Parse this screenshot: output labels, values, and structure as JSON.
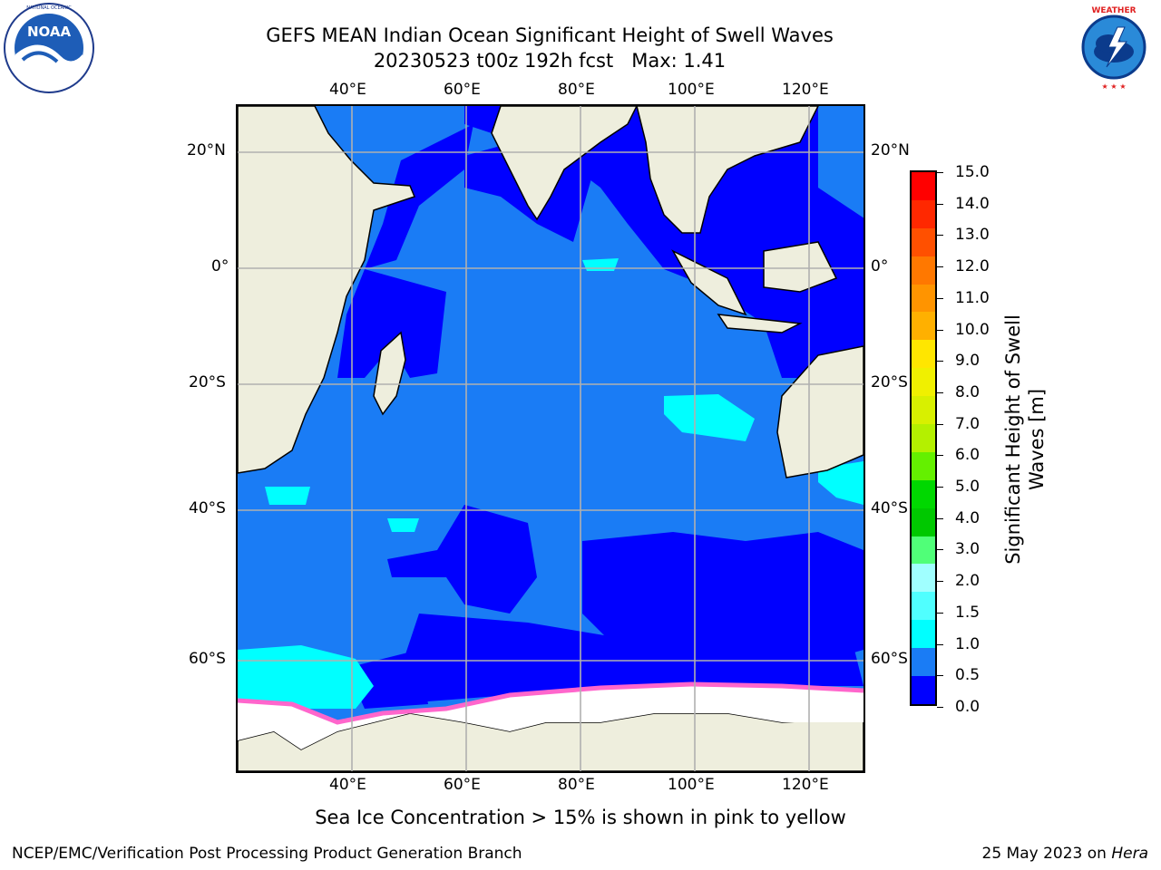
{
  "title": {
    "line1": "GEFS MEAN Indian Ocean Significant Height of Swell Waves",
    "line2": "20230523 t00z 192h fcst   Max: 1.41"
  },
  "map": {
    "lon_ticks": [
      "40°E",
      "60°E",
      "80°E",
      "100°E",
      "120°E"
    ],
    "lat_ticks_left": [
      "20°N",
      "0°",
      "20°S",
      "40°S",
      "60°S"
    ],
    "lat_ticks_right": [
      "20°N",
      "0°",
      "20°S",
      "40°S",
      "60°S"
    ],
    "colors": {
      "land": "#eeeedd",
      "ocean_low": "#0000ff",
      "ocean_mid": "#1a7cf5",
      "ocean_high": "#00ffff",
      "ice_edge": "#ff66cc",
      "ice": "#ffffff",
      "grid": "#b0b0b0"
    }
  },
  "colorbar": {
    "title_line1": "Significant Height of Swell",
    "title_line2": "Waves [m]",
    "labels": [
      "15.0",
      "14.0",
      "13.0",
      "12.0",
      "11.0",
      "10.0",
      "9.0",
      "8.0",
      "7.0",
      "6.0",
      "5.0",
      "4.0",
      "3.0",
      "2.0",
      "1.5",
      "1.0",
      "0.5",
      "0.0"
    ],
    "colors": [
      "#ff0000",
      "#ff2800",
      "#ff5000",
      "#ff7800",
      "#ff9400",
      "#ffb000",
      "#ffe600",
      "#f0f000",
      "#d8f000",
      "#b4f000",
      "#64f000",
      "#00d800",
      "#00c800",
      "#50ff78",
      "#a0ffff",
      "#50ffff",
      "#00ffff",
      "#1a7cf5",
      "#0000ff"
    ]
  },
  "caption": "Sea Ice Concentration > 15% is shown in pink to yellow",
  "footer": {
    "left": "NCEP/EMC/Verification Post Processing Product Generation Branch",
    "date": "25 May 2023 on ",
    "host": "Hera"
  },
  "logos": {
    "noaa_text": "NOAA",
    "noaa_ring": "NATIONAL OCEANIC AND ATMOSPHERIC ADMINISTRATION · U.S. DEPARTMENT OF COMMERCE",
    "nws_ring": "NATIONAL WEATHER SERVICE"
  }
}
